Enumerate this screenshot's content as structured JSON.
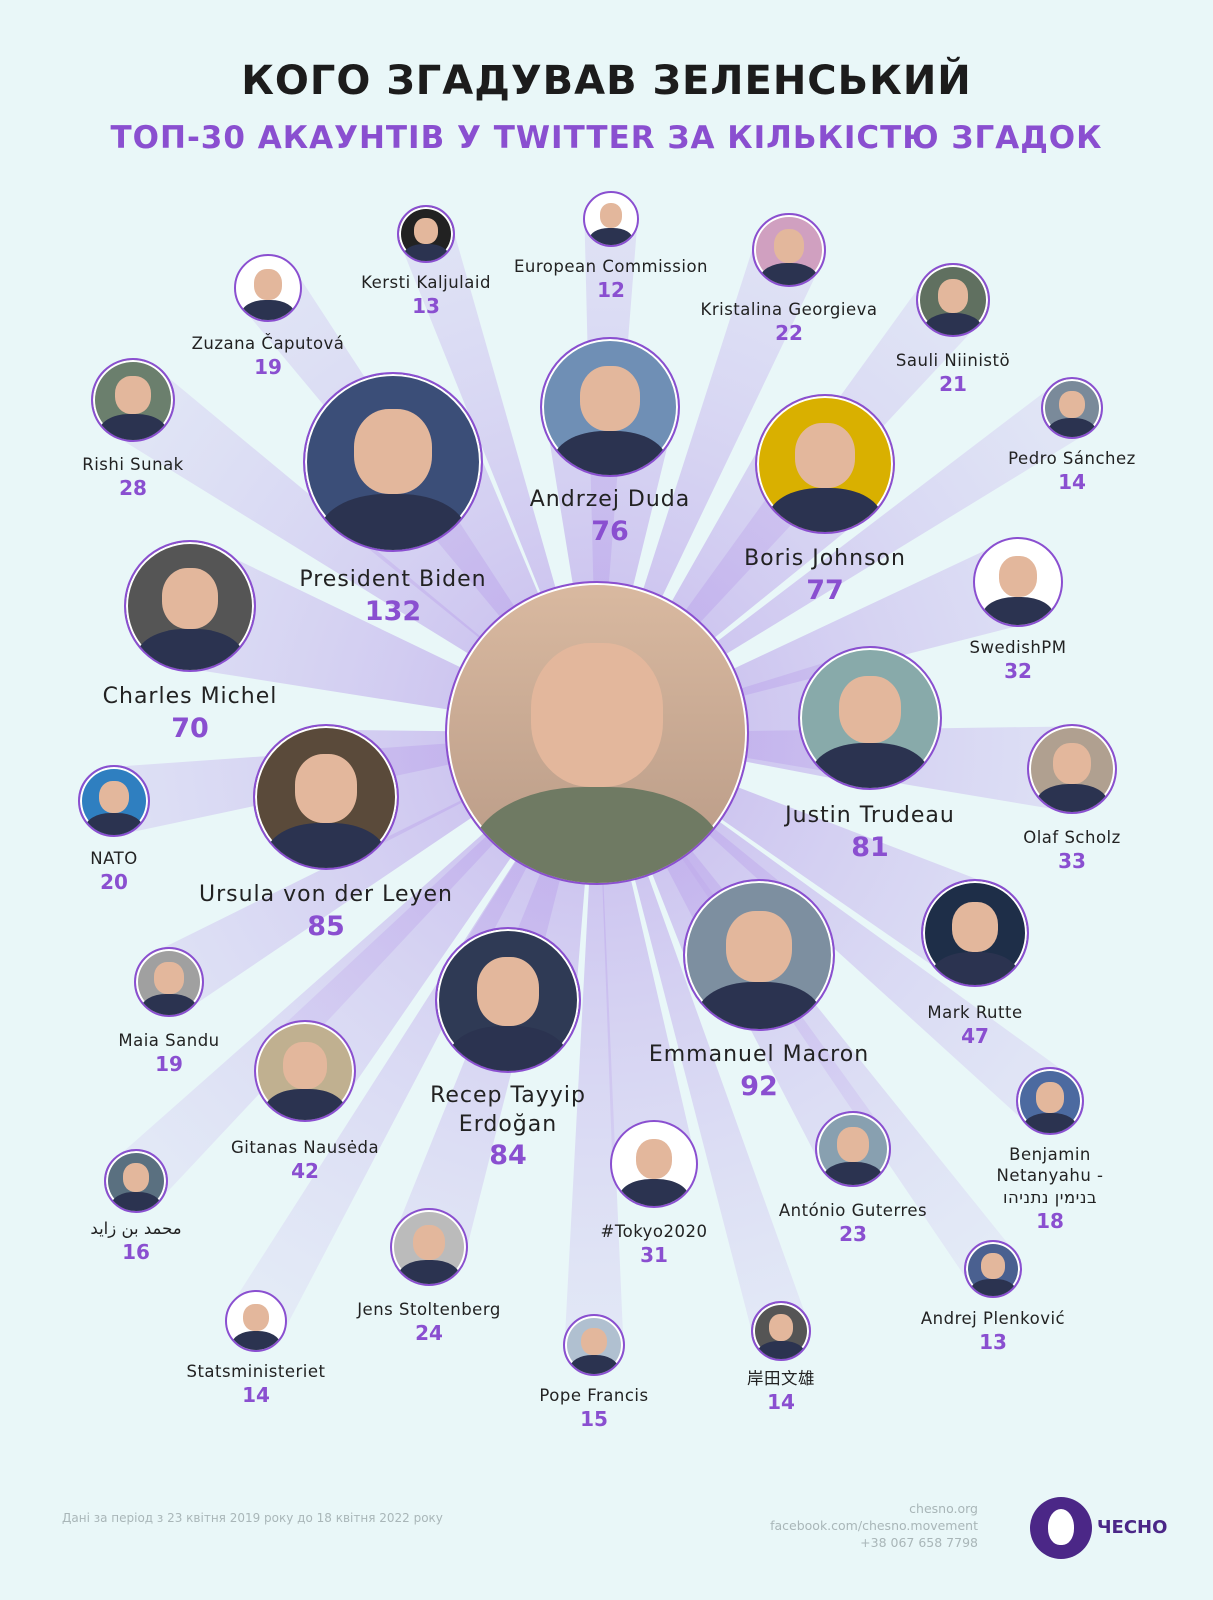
{
  "header": {
    "title": "КОГО ЗГАДУВАВ ЗЕЛЕНСЬКИЙ",
    "subtitle": "ТОП-30 АКАУНТІВ У TWITTER ЗА КІЛЬКІСТЮ ЗГАДОК"
  },
  "colors": {
    "accent": "#8a4fd0",
    "background": "#e9f7f8",
    "brand": "#4b2787"
  },
  "chart_data": {
    "type": "bubble",
    "title": "КОГО ЗГАДУВАВ ЗЕЛЕНСЬКИЙ",
    "subtitle": "ТОП-30 АКАУНТІВ У TWITTER ЗА КІЛЬКІСТЮ ЗГАДОК",
    "center": "Zelensky (photo)",
    "accounts": [
      {
        "name": "President Biden",
        "mentions": 132
      },
      {
        "name": "Andrzej Duda",
        "mentions": 76
      },
      {
        "name": "Boris Johnson",
        "mentions": 77
      },
      {
        "name": "Charles Michel",
        "mentions": 70
      },
      {
        "name": "Ursula von der Leyen",
        "mentions": 85
      },
      {
        "name": "Justin Trudeau",
        "mentions": 81
      },
      {
        "name": "Emmanuel Macron",
        "mentions": 92
      },
      {
        "name": "Recep Tayyip\nErdoğan",
        "mentions": 84
      },
      {
        "name": "Rishi Sunak",
        "mentions": 28
      },
      {
        "name": "Zuzana Čaputová",
        "mentions": 19
      },
      {
        "name": "Kersti Kaljulaid",
        "mentions": 13
      },
      {
        "name": "European Commission",
        "mentions": 12
      },
      {
        "name": "Kristalina Georgieva",
        "mentions": 22
      },
      {
        "name": "Sauli Niinistö",
        "mentions": 21
      },
      {
        "name": "Pedro Sánchez",
        "mentions": 14
      },
      {
        "name": "SwedishPM",
        "mentions": 32
      },
      {
        "name": "Olaf Scholz",
        "mentions": 33
      },
      {
        "name": "Mark Rutte",
        "mentions": 47
      },
      {
        "name": "Benjamin Netanyahu -\nבנימין נתניהו",
        "mentions": 18
      },
      {
        "name": "António Guterres",
        "mentions": 23
      },
      {
        "name": "Andrej Plenković",
        "mentions": 13
      },
      {
        "name": "岸田文雄",
        "mentions": 14
      },
      {
        "name": "#Tokyo2020",
        "mentions": 31
      },
      {
        "name": "Pope Francis",
        "mentions": 15
      },
      {
        "name": "Jens Stoltenberg",
        "mentions": 24
      },
      {
        "name": "Statsministeriet",
        "mentions": 14
      },
      {
        "name": "محمد بن زايد",
        "mentions": 16
      },
      {
        "name": "Gitanas Nausėda",
        "mentions": 42
      },
      {
        "name": "Maia Sandu",
        "mentions": 19
      },
      {
        "name": "NATO",
        "mentions": 20
      }
    ]
  },
  "footer": {
    "period": "Дані за період з 23 квітня 2019 року до 18 квітня 2022 року",
    "site": "chesno.org",
    "facebook": "facebook.com/chesno.movement",
    "phone": "+38 067 658 7798",
    "brand": "ЧЕСНО"
  }
}
